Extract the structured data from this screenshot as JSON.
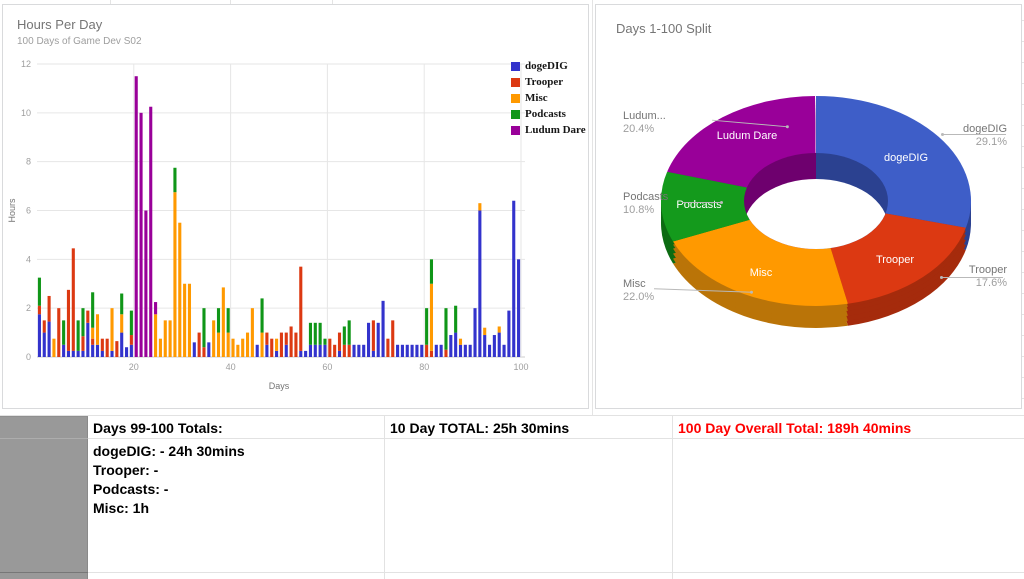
{
  "chart_data": [
    {
      "type": "bar",
      "stacked": true,
      "title": "Hours Per Day",
      "subtitle": "100 Days of Game Dev S02",
      "xlabel": "Days",
      "ylabel": "Hours",
      "x_start": 1,
      "x_end": 100,
      "x_ticks": [
        20,
        40,
        60,
        80,
        100
      ],
      "y_ticks": [
        0,
        2,
        4,
        6,
        8,
        10,
        12
      ],
      "ylim": [
        0,
        12
      ],
      "grid": true,
      "legend_position": "top-right",
      "series_names": [
        "dogeDIG",
        "Trooper",
        "Misc",
        "Podcasts",
        "Ludum Dare"
      ],
      "colors": [
        "#3333CC",
        "#DC3912",
        "#FF9900",
        "#109618",
        "#990099"
      ],
      "bars_order": "values per day in series order [dogeDIG, Trooper, Misc, Podcasts, Ludum Dare]",
      "bars": [
        [
          1.75,
          0.35,
          0,
          1.15,
          0
        ],
        [
          1,
          0.5,
          0,
          0,
          0
        ],
        [
          1.45,
          1.05,
          0,
          0,
          0
        ],
        [
          0,
          0,
          0.75,
          0,
          0
        ],
        [
          0,
          2,
          0,
          0,
          0
        ],
        [
          0.5,
          0,
          0,
          1,
          0
        ],
        [
          0.25,
          2.5,
          0,
          0,
          0
        ],
        [
          0.25,
          4.2,
          0,
          0,
          0
        ],
        [
          0.25,
          0,
          0,
          1.25,
          0
        ],
        [
          0.25,
          0.6,
          0,
          1.15,
          0
        ],
        [
          1.4,
          0.5,
          0,
          0,
          0
        ],
        [
          0.5,
          0.25,
          0.45,
          1.45,
          0
        ],
        [
          0.5,
          0,
          1.25,
          0,
          0
        ],
        [
          0.25,
          0.5,
          0,
          0,
          0
        ],
        [
          0,
          0.75,
          0,
          0,
          0
        ],
        [
          0.25,
          0,
          1.75,
          0,
          0
        ],
        [
          0,
          0.65,
          0,
          0,
          0
        ],
        [
          1,
          0,
          0.75,
          0.85,
          0
        ],
        [
          0.4,
          0,
          0,
          0,
          0
        ],
        [
          0.5,
          0.4,
          0,
          1,
          0
        ],
        [
          0,
          0,
          0,
          0,
          11.5
        ],
        [
          0,
          0,
          0,
          0,
          10
        ],
        [
          0,
          0,
          0,
          0,
          6
        ],
        [
          0,
          0,
          0,
          0,
          10.25
        ],
        [
          0,
          0,
          1.75,
          0,
          0.5
        ],
        [
          0,
          0,
          0.75,
          0,
          0
        ],
        [
          0,
          0,
          1.5,
          0,
          0
        ],
        [
          0,
          0,
          1.5,
          0,
          0
        ],
        [
          0,
          0,
          6.75,
          1,
          0
        ],
        [
          0,
          0,
          5.5,
          0,
          0
        ],
        [
          0,
          0,
          3,
          0,
          0
        ],
        [
          0,
          0,
          3,
          0,
          0
        ],
        [
          0.6,
          0,
          0,
          0,
          0
        ],
        [
          0,
          1,
          0,
          0,
          0
        ],
        [
          0,
          0.4,
          0,
          1.6,
          0
        ],
        [
          0.6,
          0,
          0,
          0,
          0
        ],
        [
          0,
          0,
          1.5,
          0,
          0
        ],
        [
          0,
          0,
          1,
          1,
          0
        ],
        [
          0,
          0,
          2.85,
          0,
          0
        ],
        [
          0,
          0,
          1,
          1,
          0
        ],
        [
          0,
          0,
          0.75,
          0,
          0
        ],
        [
          0,
          0,
          0.5,
          0,
          0
        ],
        [
          0,
          0,
          0.75,
          0,
          0
        ],
        [
          0,
          0,
          1,
          0,
          0
        ],
        [
          0,
          0,
          2,
          0,
          0
        ],
        [
          0.5,
          0,
          0,
          0,
          0
        ],
        [
          0,
          0,
          1,
          1.4,
          0
        ],
        [
          0.5,
          0.5,
          0,
          0,
          0
        ],
        [
          0,
          0.75,
          0,
          0,
          0
        ],
        [
          0.25,
          0,
          0.5,
          0,
          0
        ],
        [
          0,
          1,
          0,
          0,
          0
        ],
        [
          0.5,
          0.5,
          0,
          0,
          0
        ],
        [
          0,
          1.25,
          0,
          0,
          0
        ],
        [
          0,
          1,
          0,
          0,
          0
        ],
        [
          0.25,
          3.45,
          0,
          0,
          0
        ],
        [
          0.25,
          0,
          0,
          0,
          0
        ],
        [
          0.5,
          0,
          0,
          0.9,
          0
        ],
        [
          0.5,
          0,
          0,
          0.9,
          0
        ],
        [
          0.5,
          0,
          0,
          0.9,
          0
        ],
        [
          0.5,
          0,
          0,
          0.25,
          0
        ],
        [
          0,
          0.75,
          0,
          0,
          0
        ],
        [
          0,
          0.5,
          0,
          0,
          0
        ],
        [
          0.25,
          0.75,
          0,
          0,
          0
        ],
        [
          0,
          0.5,
          0,
          0.75,
          0
        ],
        [
          0,
          0.5,
          0,
          1,
          0
        ],
        [
          0.5,
          0,
          0,
          0,
          0
        ],
        [
          0.5,
          0,
          0,
          0,
          0
        ],
        [
          0.5,
          0,
          0,
          0,
          0
        ],
        [
          1.4,
          0,
          0,
          0,
          0
        ],
        [
          0.25,
          1.25,
          0,
          0,
          0
        ],
        [
          1.4,
          0,
          0,
          0,
          0
        ],
        [
          2.3,
          0,
          0,
          0,
          0
        ],
        [
          0,
          0.75,
          0,
          0,
          0
        ],
        [
          0,
          1.5,
          0,
          0,
          0
        ],
        [
          0.5,
          0,
          0,
          0,
          0
        ],
        [
          0.5,
          0,
          0,
          0,
          0
        ],
        [
          0.5,
          0,
          0,
          0,
          0
        ],
        [
          0.5,
          0,
          0,
          0,
          0
        ],
        [
          0.5,
          0,
          0,
          0,
          0
        ],
        [
          0.5,
          0,
          0,
          0,
          0
        ],
        [
          0,
          0.5,
          0,
          1.5,
          0
        ],
        [
          0,
          0.25,
          2.75,
          1,
          0
        ],
        [
          0.5,
          0,
          0,
          0,
          0
        ],
        [
          0.5,
          0,
          0,
          0,
          0
        ],
        [
          0,
          0.3,
          0,
          1.7,
          0
        ],
        [
          0.9,
          0,
          0,
          0,
          0
        ],
        [
          1,
          0,
          0,
          1.1,
          0
        ],
        [
          0.5,
          0,
          0.25,
          0,
          0
        ],
        [
          0.5,
          0,
          0,
          0,
          0
        ],
        [
          0.5,
          0,
          0,
          0,
          0
        ],
        [
          2,
          0,
          0,
          0,
          0
        ],
        [
          6,
          0,
          0.3,
          0,
          0
        ],
        [
          0.9,
          0,
          0.3,
          0,
          0
        ],
        [
          0.5,
          0,
          0,
          0,
          0
        ],
        [
          0.9,
          0,
          0,
          0,
          0
        ],
        [
          1,
          0,
          0.25,
          0,
          0
        ],
        [
          0.5,
          0,
          0,
          0,
          0
        ],
        [
          1.9,
          0,
          0,
          0,
          0
        ],
        [
          6.4,
          0,
          0,
          0,
          0
        ],
        [
          4,
          0,
          0,
          0,
          0
        ]
      ]
    },
    {
      "type": "pie",
      "subtype": "3d-donut",
      "title": "Days 1-100 Split",
      "slices": [
        {
          "label": "dogeDIG",
          "pct": 29.1,
          "pct_label": "29.1%",
          "callout_name": "dogeDIG",
          "color": "#3E5EC8",
          "dark": "#2B4190"
        },
        {
          "label": "Trooper",
          "pct": 17.6,
          "pct_label": "17.6%",
          "callout_name": "Trooper",
          "color": "#DC3912",
          "dark": "#A52B0C"
        },
        {
          "label": "Misc",
          "pct": 22.0,
          "pct_label": "22.0%",
          "callout_name": "Misc",
          "color": "#FF9900",
          "dark": "#BA7408"
        },
        {
          "label": "Podcasts",
          "pct": 10.8,
          "pct_label": "10.8%",
          "callout_name": "Podcasts",
          "color": "#149A1C",
          "dark": "#0C6B12"
        },
        {
          "label": "Ludum Dare",
          "pct": 20.4,
          "pct_label": "20.4%",
          "callout_name": "Ludum...",
          "color": "#990099",
          "dark": "#6E006E"
        }
      ]
    }
  ],
  "table": {
    "header": [
      "Days 99-100 Totals:",
      "10 Day TOTAL: 25h 30mins",
      "100 Day Overall Total: 189h 40mins"
    ],
    "detail_lines": [
      "dogeDIG: - 24h 30mins",
      "Trooper: -",
      "Podcasts: -",
      "Misc: 1h"
    ],
    "overall_total_color": "#ff0000"
  }
}
